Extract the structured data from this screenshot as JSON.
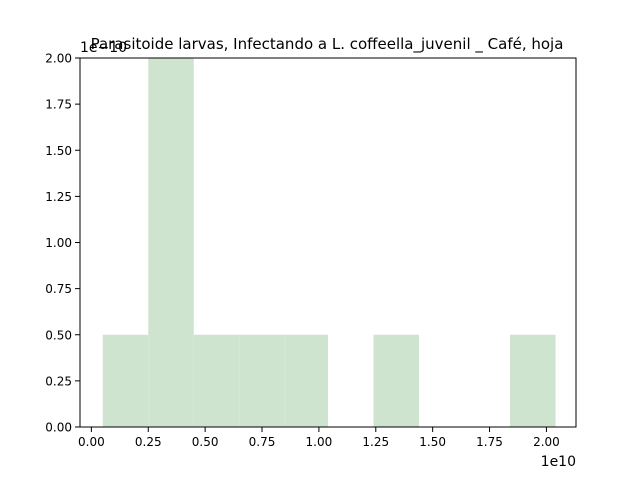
{
  "chart_data": {
    "type": "bar",
    "title": "Parasitoide larvas, Infectando a L. coffeella_juvenil _ Café, hoja",
    "xlabel": "",
    "ylabel": "",
    "x_offset_text": "1e10",
    "y_offset_text": "1e−10",
    "xlim": [
      -0.05,
      2.13
    ],
    "ylim": [
      0,
      2.0
    ],
    "x_ticks": [
      "0.00",
      "0.25",
      "0.50",
      "0.75",
      "1.00",
      "1.25",
      "1.50",
      "1.75",
      "2.00"
    ],
    "y_ticks": [
      "0.00",
      "0.25",
      "0.50",
      "0.75",
      "1.00",
      "1.25",
      "1.50",
      "1.75",
      "2.00"
    ],
    "bar_color": "#cfe4cf",
    "bins": [
      {
        "x0": 0.05,
        "x1": 0.25,
        "value": 0.5
      },
      {
        "x0": 0.25,
        "x1": 0.45,
        "value": 2.0
      },
      {
        "x0": 0.45,
        "x1": 0.65,
        "value": 0.5
      },
      {
        "x0": 0.65,
        "x1": 0.85,
        "value": 0.5
      },
      {
        "x0": 0.85,
        "x1": 1.04,
        "value": 0.5
      },
      {
        "x0": 1.04,
        "x1": 1.24,
        "value": 0.0
      },
      {
        "x0": 1.24,
        "x1": 1.44,
        "value": 0.5
      },
      {
        "x0": 1.44,
        "x1": 1.64,
        "value": 0.0
      },
      {
        "x0": 1.64,
        "x1": 1.84,
        "value": 0.0
      },
      {
        "x0": 1.84,
        "x1": 2.04,
        "value": 0.5
      }
    ],
    "grid": false,
    "legend": "none"
  }
}
